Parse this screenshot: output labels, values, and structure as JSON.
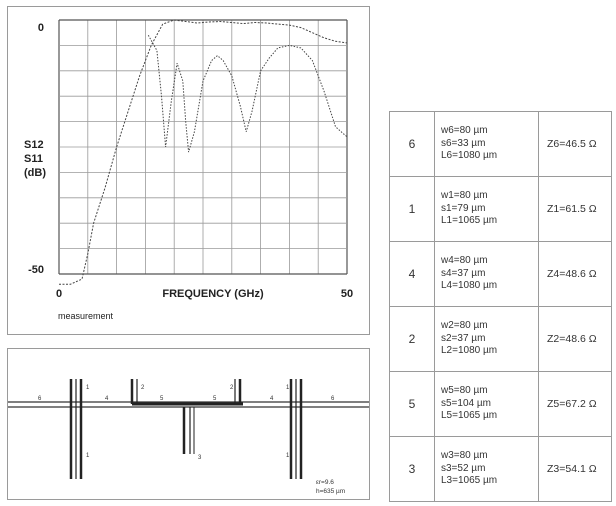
{
  "chart_data": {
    "type": "line",
    "title": "",
    "xlabel": "FREQUENCY (GHz)",
    "ylabel": [
      "S12",
      "S11",
      "(dB)"
    ],
    "xlim": [
      0,
      50
    ],
    "ylim": [
      -50,
      0
    ],
    "x_tick_labels": [
      "0",
      "50"
    ],
    "y_tick_labels": [
      "0",
      "-50"
    ],
    "caption": "measurement",
    "grid": true,
    "series": [
      {
        "x": [
          0,
          2,
          4,
          5,
          6,
          8,
          10,
          12,
          14,
          16,
          18,
          20,
          22,
          24,
          26,
          28,
          30,
          32,
          34,
          36,
          38,
          40,
          42,
          44,
          46,
          48,
          50
        ],
        "y": [
          -52,
          -52,
          -51,
          -46,
          -40,
          -33,
          -25,
          -18,
          -11,
          -5,
          -0.8,
          0,
          -0.3,
          -0.6,
          -0.4,
          -0.3,
          -0.5,
          -0.7,
          -0.5,
          -0.6,
          -0.8,
          -1,
          -1.5,
          -2.5,
          -3.5,
          -4.2,
          -4.5
        ]
      },
      {
        "x": [
          15.5,
          17,
          17.8,
          18.5,
          19.5,
          20.5,
          21.5,
          22,
          22.5,
          23.5,
          25,
          26.5,
          27.5,
          28.5,
          30,
          31.5,
          32.5,
          33.5,
          35,
          36.5,
          38,
          40,
          42,
          44,
          46,
          48,
          49,
          50
        ],
        "y": [
          -3,
          -6,
          -15,
          -25,
          -16,
          -8.5,
          -12,
          -20,
          -26,
          -22,
          -12,
          -8,
          -7,
          -8,
          -11,
          -17,
          -22,
          -18,
          -10,
          -7.5,
          -5.5,
          -5,
          -5.5,
          -8,
          -14,
          -21,
          -22,
          -23
        ]
      }
    ]
  },
  "layout": {
    "port_labels": {
      "a": "6",
      "b": "1",
      "c": "4",
      "d": "2",
      "e": "5",
      "f": "5",
      "g": "2",
      "h": "4",
      "i": "1",
      "j": "6",
      "k": "1",
      "l": "3",
      "m": "1"
    },
    "substrate": [
      "εr=9.6",
      "h=635 µm"
    ]
  },
  "table": {
    "rows": [
      {
        "section": "6",
        "w": "w6=80 µm",
        "s": "s6=33 µm",
        "L": "L6=1080 µm",
        "Z": "Z6=46.5 Ω"
      },
      {
        "section": "1",
        "w": "w1=80 µm",
        "s": "s1=79 µm",
        "L": "L1=1065 µm",
        "Z": "Z1=61.5 Ω"
      },
      {
        "section": "4",
        "w": "w4=80 µm",
        "s": "s4=37 µm",
        "L": "L4=1080 µm",
        "Z": "Z4=48.6 Ω"
      },
      {
        "section": "2",
        "w": "w2=80 µm",
        "s": "s2=37 µm",
        "L": "L2=1080 µm",
        "Z": "Z2=48.6 Ω"
      },
      {
        "section": "5",
        "w": "w5=80 µm",
        "s": "s5=104 µm",
        "L": "L5=1065 µm",
        "Z": "Z5=67.2 Ω"
      },
      {
        "section": "3",
        "w": "w3=80 µm",
        "s": "s3=52 µm",
        "L": "L3=1065 µm",
        "Z": "Z3=54.1 Ω"
      }
    ]
  }
}
